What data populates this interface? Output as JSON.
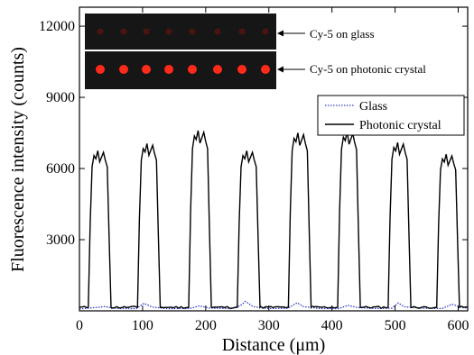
{
  "chart_data": {
    "type": "line",
    "xlabel": "Distance (μm)",
    "ylabel": "Fluorescence intensity (counts)",
    "xlim": [
      0,
      615
    ],
    "ylim": [
      0,
      12800
    ],
    "xticks": [
      0,
      100,
      200,
      300,
      400,
      500,
      600
    ],
    "yticks": [
      3000,
      6000,
      9000,
      12000
    ],
    "legend_position": "right",
    "colors": {
      "glass": "#2c3ec8",
      "photonic": "#000000",
      "spot": "#ff2a1a",
      "spot_dim": "#4a1510"
    },
    "peak_centers": [
      32,
      110,
      191,
      268,
      349,
      427,
      507,
      584
    ],
    "peak_heights": [
      6750,
      7050,
      7600,
      6750,
      7500,
      7550,
      7100,
      6600
    ],
    "baseline": 150,
    "series": [
      {
        "name": "Glass",
        "style": "dotted",
        "x": [
          0,
          25,
          40,
          60,
          90,
          102,
          115,
          140,
          175,
          190,
          205,
          240,
          255,
          263,
          275,
          300,
          330,
          345,
          355,
          380,
          410,
          425,
          440,
          470,
          495,
          505,
          515,
          545,
          575,
          590,
          605,
          615
        ],
        "y": [
          80,
          140,
          180,
          100,
          90,
          320,
          160,
          90,
          100,
          210,
          120,
          90,
          220,
          400,
          180,
          100,
          110,
          340,
          180,
          100,
          90,
          230,
          140,
          100,
          110,
          330,
          170,
          110,
          100,
          280,
          140,
          120
        ]
      },
      {
        "name": "Photonic crystal",
        "style": "solid"
      }
    ],
    "annotations": [
      "Cy-5 on glass",
      "Cy-5 on photonic crystal"
    ]
  }
}
